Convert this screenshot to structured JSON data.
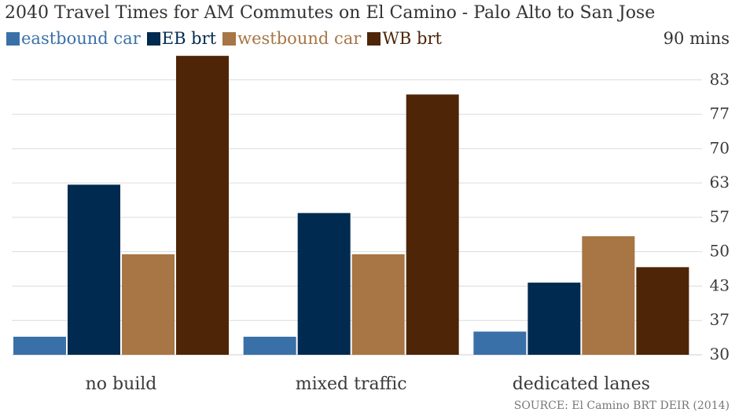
{
  "chart_data": {
    "type": "bar",
    "title": "2040 Travel Times for AM Commutes on El Camino - Palo Alto to San Jose",
    "unit_label": "90 mins",
    "categories": [
      "no build",
      "mixed traffic",
      "dedicated lanes"
    ],
    "series": [
      {
        "name": "eastbound car",
        "color": "#3a70a8",
        "values": [
          33.5,
          33.5,
          34.5
        ]
      },
      {
        "name": "EB brt",
        "color": "#002a4f",
        "values": [
          63,
          57.5,
          44
        ]
      },
      {
        "name": "westbound car",
        "color": "#a87544",
        "values": [
          49.5,
          49.5,
          53
        ]
      },
      {
        "name": "WB brt",
        "color": "#4e2507",
        "values": [
          88,
          80.5,
          47
        ]
      }
    ],
    "y_ticks": [
      "30",
      "37",
      "43",
      "50",
      "57",
      "63",
      "70",
      "77",
      "83"
    ],
    "y_tick_values": [
      30,
      36.67,
      43.33,
      50,
      56.67,
      63.33,
      70,
      76.67,
      83.33
    ],
    "ylim": [
      30,
      90
    ],
    "grid": true,
    "legend_position": "top-left",
    "y_axis_position": "right",
    "source": "SOURCE: El Camino BRT DEIR (2014)"
  }
}
